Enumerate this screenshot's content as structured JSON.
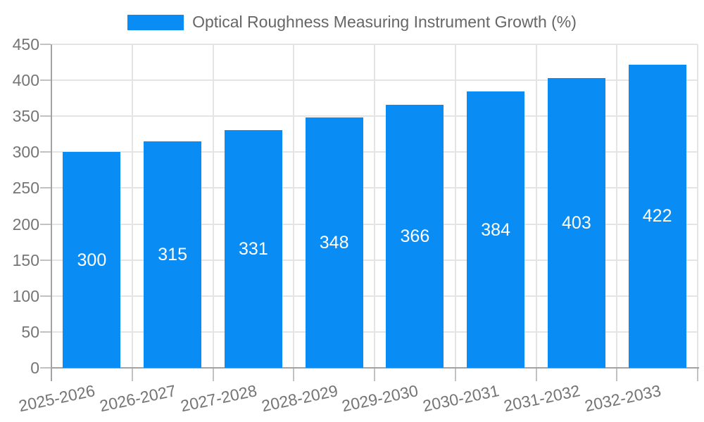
{
  "legend": {
    "label": "Optical Roughness Measuring Instrument Growth (%)"
  },
  "chart_data": {
    "type": "bar",
    "title": "Optical Roughness Measuring Instrument Growth (%)",
    "series_name": "Optical Roughness Measuring Instrument Growth (%)",
    "categories": [
      "2025-2026",
      "2026-2027",
      "2027-2028",
      "2028-2029",
      "2029-2030",
      "2030-2031",
      "2031-2032",
      "2032-2033"
    ],
    "values": [
      300,
      315,
      331,
      348,
      366,
      384,
      403,
      422
    ],
    "value_labels": [
      "300",
      "315",
      "331",
      "348",
      "366",
      "384",
      "403",
      "422"
    ],
    "xlabel": "",
    "ylabel": "",
    "ylim": [
      0,
      450
    ],
    "ytick_step": 50,
    "ytick_labels": [
      "0",
      "50",
      "100",
      "150",
      "200",
      "250",
      "300",
      "350",
      "400",
      "450"
    ],
    "grid": true,
    "legend_position": "top-center",
    "colors": {
      "bar": "#0a8cf5",
      "value_label": "#ffffff",
      "gridline": "#e4e4e4",
      "axis_line": "#a3a3a3",
      "tick": "#c2c2c2",
      "axis_text": "#757575",
      "legend_text": "#666666",
      "background": "#ffffff"
    }
  }
}
